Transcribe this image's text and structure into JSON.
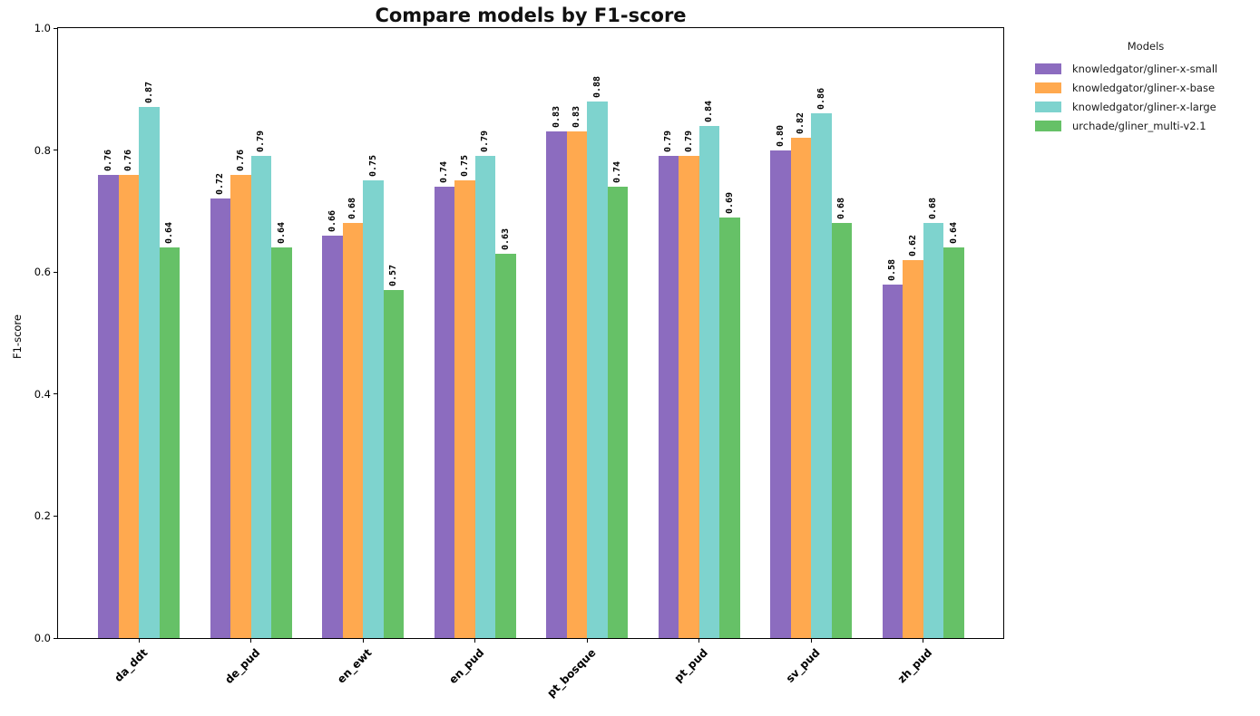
{
  "chart_data": {
    "type": "bar",
    "title": "Compare models by F1-score",
    "xlabel": "",
    "ylabel": "F1-score",
    "ylim": [
      0.0,
      1.0
    ],
    "yticks": [
      "0.0",
      "0.2",
      "0.4",
      "0.6",
      "0.8",
      "1.0"
    ],
    "grid": false,
    "bar_label_rotation": 90,
    "bar_label_decimals": 2,
    "legend": {
      "title": "Models",
      "position": "outside-upper-right"
    },
    "categories": [
      "da_ddt",
      "de_pud",
      "en_ewt",
      "en_pud",
      "pt_bosque",
      "pt_pud",
      "sv_pud",
      "zh_pud"
    ],
    "series": [
      {
        "name": "knowledgator/gliner-x-small",
        "color": "#8c6cbf",
        "values": [
          0.76,
          0.72,
          0.66,
          0.74,
          0.83,
          0.79,
          0.8,
          0.58
        ]
      },
      {
        "name": "knowledgator/gliner-x-base",
        "color": "#ffa94f",
        "values": [
          0.76,
          0.76,
          0.68,
          0.75,
          0.83,
          0.79,
          0.82,
          0.62
        ]
      },
      {
        "name": "knowledgator/gliner-x-large",
        "color": "#7ed3ce",
        "values": [
          0.87,
          0.79,
          0.75,
          0.79,
          0.88,
          0.84,
          0.86,
          0.68
        ]
      },
      {
        "name": "urchade/gliner_multi-v2.1",
        "color": "#66c167",
        "values": [
          0.64,
          0.64,
          0.57,
          0.63,
          0.74,
          0.69,
          0.68,
          0.64
        ]
      }
    ]
  }
}
